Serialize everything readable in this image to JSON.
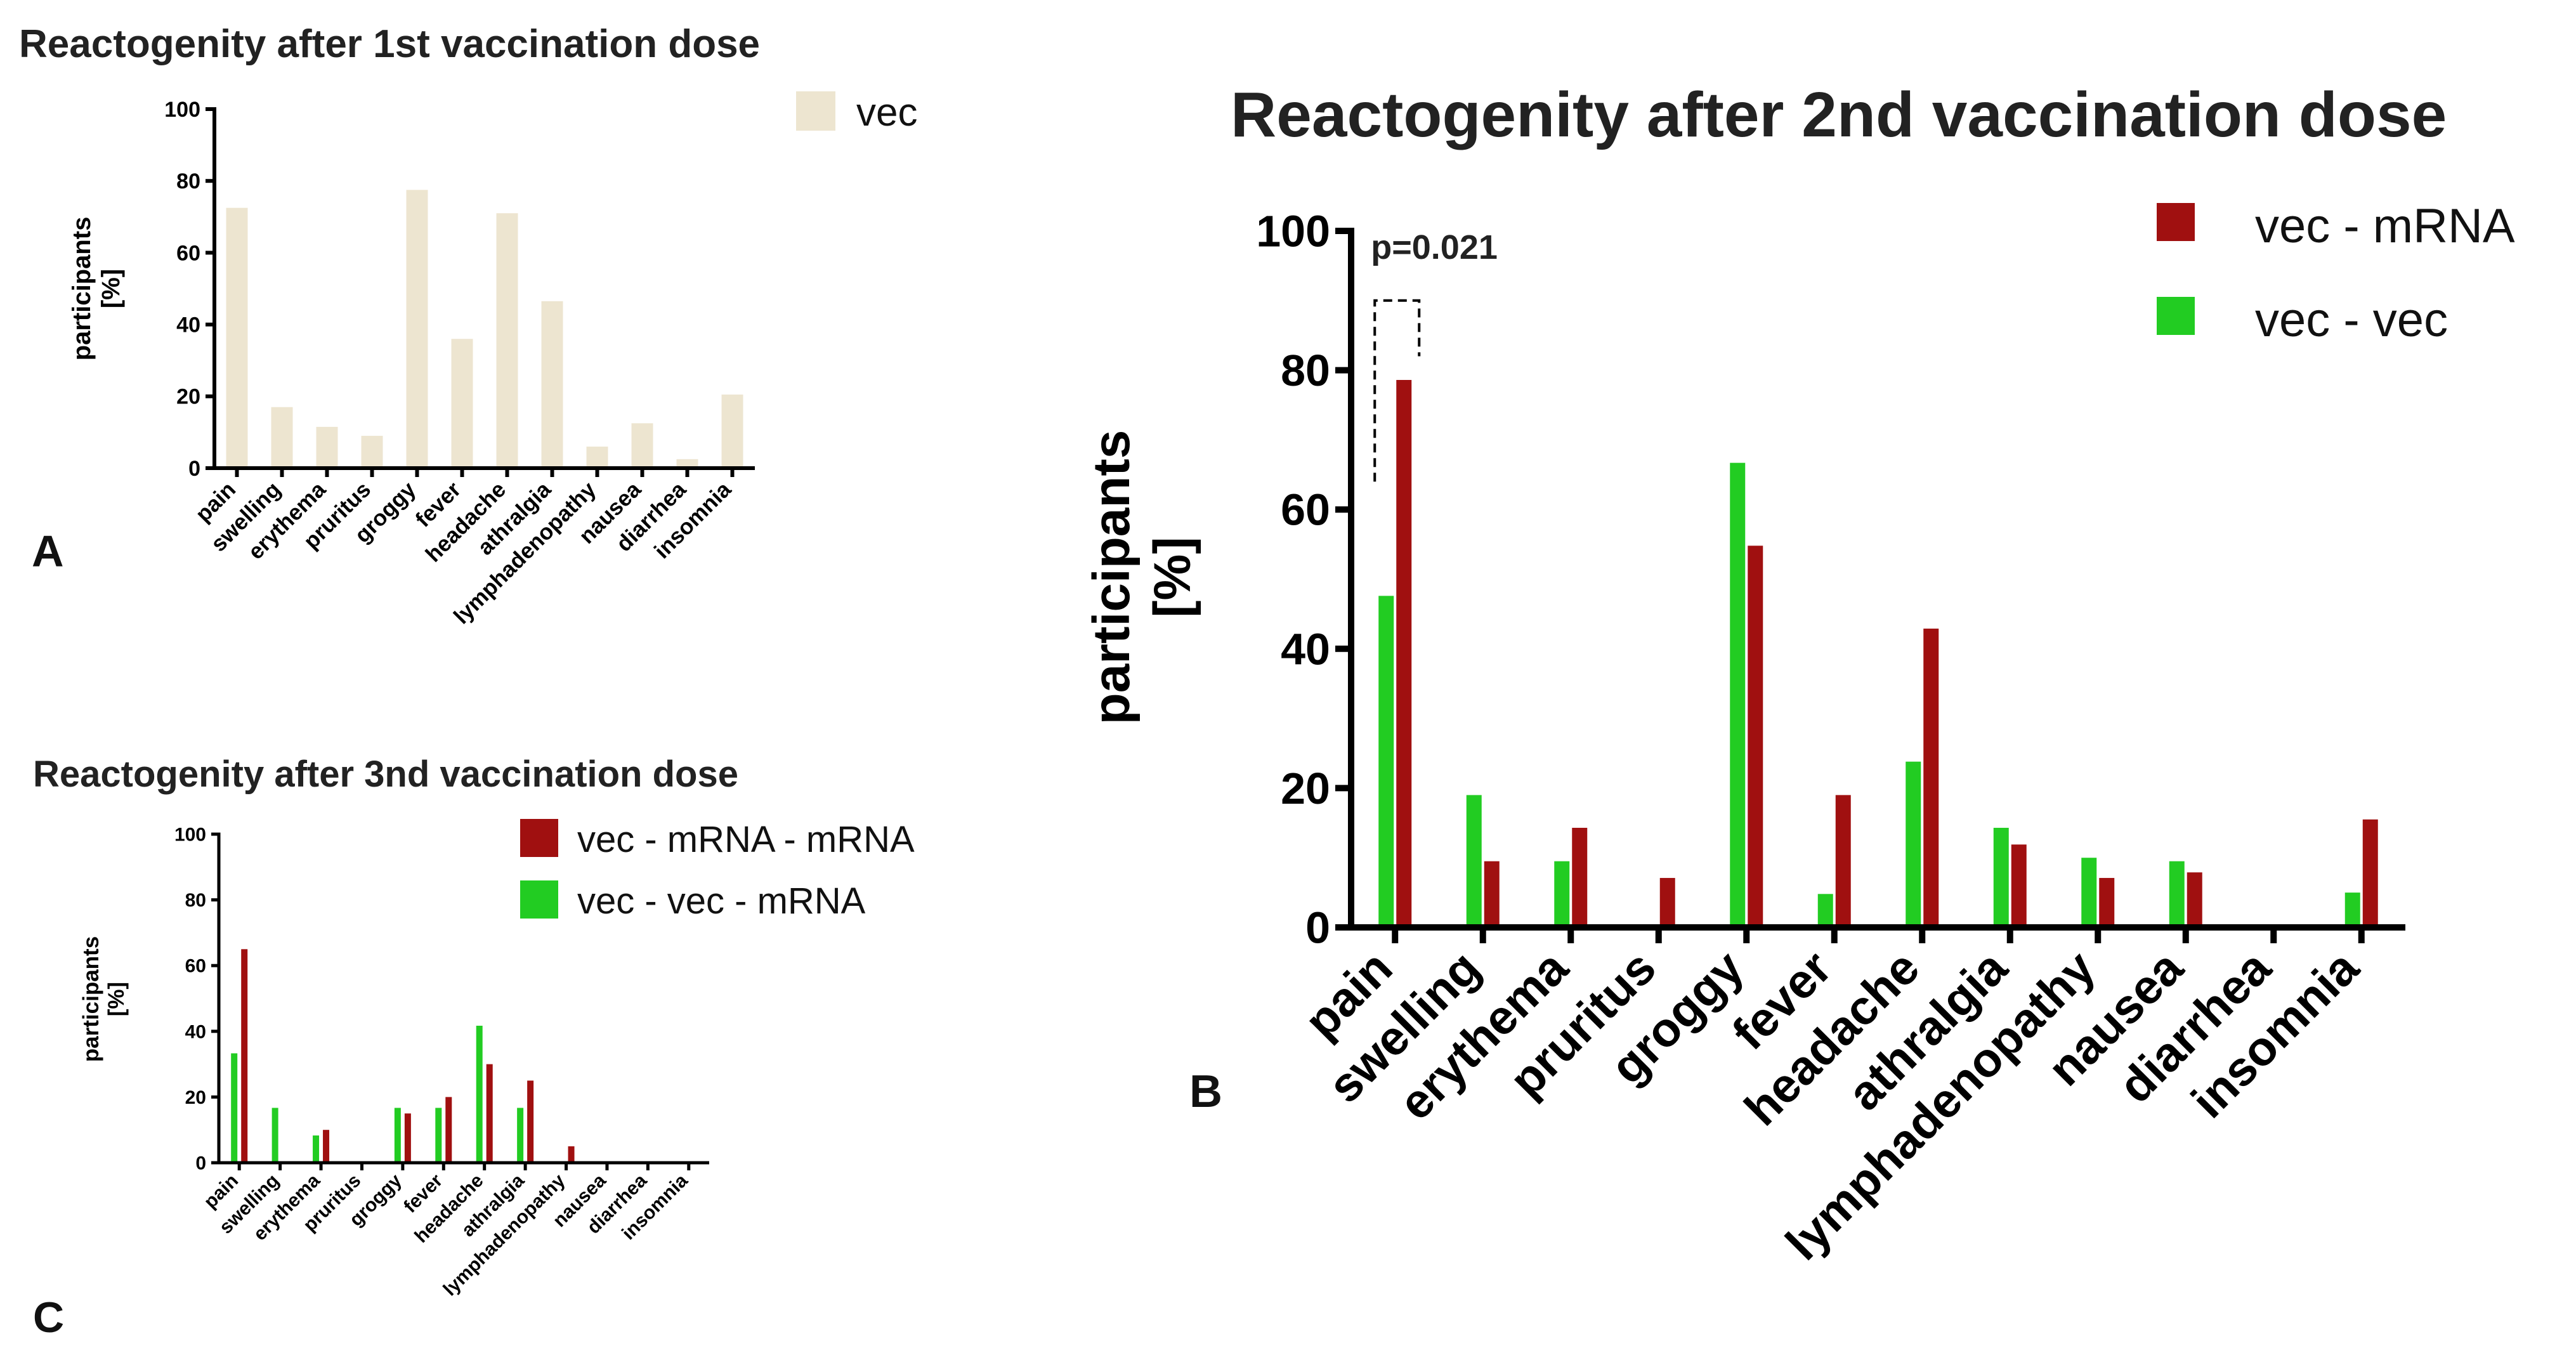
{
  "chart_data": [
    {
      "type": "bar",
      "panel": "A",
      "title": "Reactogenity after 1st vaccination dose",
      "ylabel": [
        "participants",
        "[%]"
      ],
      "ylim": [
        0,
        100
      ],
      "yticks": [
        0,
        20,
        40,
        60,
        80,
        100
      ],
      "categories": [
        "pain",
        "swelling",
        "erythema",
        "pruritus",
        "groggy",
        "fever",
        "headache",
        "athralgia",
        "lymphadenopathy",
        "nausea",
        "diarrhea",
        "insomnia"
      ],
      "series": [
        {
          "name": "vec",
          "color": "#ede5d0",
          "values": [
            72.5,
            17,
            11.5,
            9,
            77.5,
            36,
            71,
            46.5,
            6,
            12.5,
            2.5,
            20.5
          ]
        }
      ],
      "legend_position": "top-right",
      "annotations": []
    },
    {
      "type": "bar",
      "panel": "B",
      "title": "Reactogenity after 2nd vaccination dose",
      "ylabel": [
        "participants",
        "[%]"
      ],
      "ylim": [
        0,
        100
      ],
      "yticks": [
        0,
        20,
        40,
        60,
        80,
        100
      ],
      "categories": [
        "pain",
        "swelling",
        "erythema",
        "pruritus",
        "groggy",
        "fever",
        "headache",
        "athralgia",
        "lymphadenopathy",
        "nausea",
        "diarrhea",
        "insomnia"
      ],
      "series": [
        {
          "name": "vec - vec",
          "color": "#22cc22",
          "values": [
            47.6,
            19,
            9.5,
            0,
            66.7,
            4.8,
            23.8,
            14.3,
            10,
            9.5,
            0,
            5
          ]
        },
        {
          "name": "vec - mRNA",
          "color": "#a01010",
          "values": [
            78.6,
            9.5,
            14.3,
            7.1,
            54.8,
            19,
            42.9,
            11.9,
            7.1,
            7.9,
            0,
            15.5
          ]
        }
      ],
      "legend_position": "top-right",
      "annotations": [
        {
          "text": "p=0.021"
        }
      ]
    },
    {
      "type": "bar",
      "panel": "C",
      "title": "Reactogenity after 3nd vaccination dose",
      "ylabel": [
        "participants",
        "[%]"
      ],
      "ylim": [
        0,
        100
      ],
      "yticks": [
        0,
        20,
        40,
        60,
        80,
        100
      ],
      "categories": [
        "pain",
        "swelling",
        "erythema",
        "pruritus",
        "groggy",
        "fever",
        "headache",
        "athralgia",
        "lymphadenopathy",
        "nausea",
        "diarrhea",
        "insomnia"
      ],
      "series": [
        {
          "name": "vec - vec - mRNA",
          "color": "#22cc22",
          "values": [
            33.3,
            16.7,
            8.3,
            0,
            16.7,
            16.7,
            41.7,
            16.7,
            0,
            0,
            0,
            0
          ]
        },
        {
          "name": "vec - mRNA - mRNA",
          "color": "#a01010",
          "values": [
            65,
            0,
            10,
            0,
            15,
            20,
            30,
            25,
            5,
            0,
            0,
            0
          ]
        }
      ],
      "legend_position": "top-right",
      "annotations": []
    }
  ]
}
